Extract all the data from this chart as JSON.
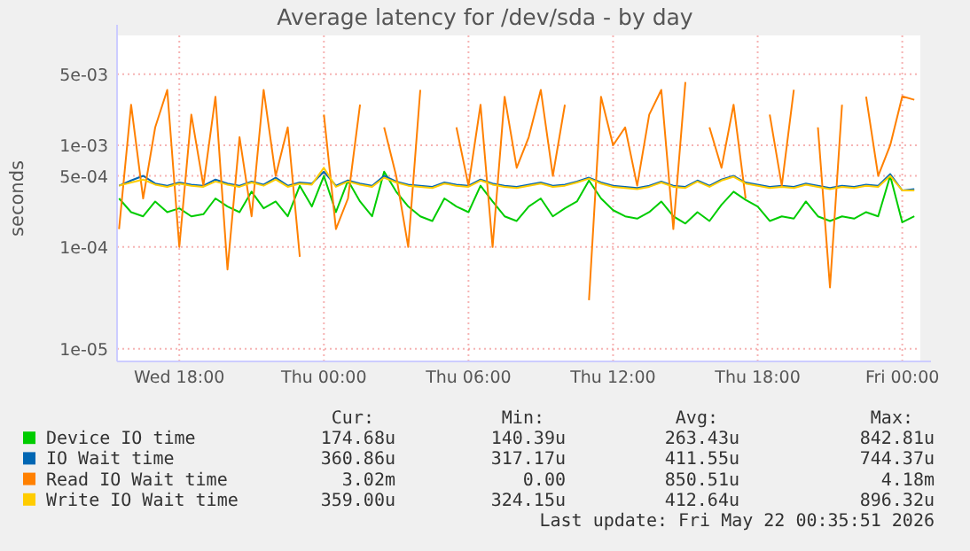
{
  "chart_data": {
    "type": "line",
    "title": "Average latency for /dev/sda - by day",
    "ylabel": "seconds",
    "log": "y",
    "grid": true,
    "legend": "bottom",
    "marker": "none",
    "line_style": "solid",
    "xlim": [
      "2026-05-20T15:25",
      "2026-05-22T00:45"
    ],
    "xticks": [
      {
        "value": "2026-05-20T18:00",
        "label": "Wed 18:00"
      },
      {
        "value": "2026-05-21T00:00",
        "label": "Thu 00:00"
      },
      {
        "value": "2026-05-21T06:00",
        "label": "Thu 06:00"
      },
      {
        "value": "2026-05-21T12:00",
        "label": "Thu 12:00"
      },
      {
        "value": "2026-05-21T18:00",
        "label": "Thu 18:00"
      },
      {
        "value": "2026-05-22T00:00",
        "label": "Fri 00:00"
      }
    ],
    "ylim": [
      7.5e-06,
      0.012
    ],
    "yticks": [
      {
        "value": 1e-05,
        "label": "1e-05"
      },
      {
        "value": 0.0001,
        "label": "1e-04"
      },
      {
        "value": 0.0005,
        "label": "5e-04"
      },
      {
        "value": 0.001,
        "label": "1e-03"
      },
      {
        "value": 0.005,
        "label": "5e-03"
      }
    ],
    "x": [
      "2026-05-20T15:30",
      "2026-05-20T16:00",
      "2026-05-20T16:30",
      "2026-05-20T17:00",
      "2026-05-20T17:30",
      "2026-05-20T18:00",
      "2026-05-20T18:30",
      "2026-05-20T19:00",
      "2026-05-20T19:30",
      "2026-05-20T20:00",
      "2026-05-20T20:30",
      "2026-05-20T21:00",
      "2026-05-20T21:30",
      "2026-05-20T22:00",
      "2026-05-20T22:30",
      "2026-05-20T23:00",
      "2026-05-20T23:30",
      "2026-05-21T00:00",
      "2026-05-21T00:30",
      "2026-05-21T01:00",
      "2026-05-21T01:30",
      "2026-05-21T02:00",
      "2026-05-21T02:30",
      "2026-05-21T03:00",
      "2026-05-21T03:30",
      "2026-05-21T04:00",
      "2026-05-21T04:30",
      "2026-05-21T05:00",
      "2026-05-21T05:30",
      "2026-05-21T06:00",
      "2026-05-21T06:30",
      "2026-05-21T07:00",
      "2026-05-21T07:30",
      "2026-05-21T08:00",
      "2026-05-21T08:30",
      "2026-05-21T09:00",
      "2026-05-21T09:30",
      "2026-05-21T10:00",
      "2026-05-21T10:30",
      "2026-05-21T11:00",
      "2026-05-21T11:30",
      "2026-05-21T12:00",
      "2026-05-21T12:30",
      "2026-05-21T13:00",
      "2026-05-21T13:30",
      "2026-05-21T14:00",
      "2026-05-21T14:30",
      "2026-05-21T15:00",
      "2026-05-21T15:30",
      "2026-05-21T16:00",
      "2026-05-21T16:30",
      "2026-05-21T17:00",
      "2026-05-21T17:30",
      "2026-05-21T18:00",
      "2026-05-21T18:30",
      "2026-05-21T19:00",
      "2026-05-21T19:30",
      "2026-05-21T20:00",
      "2026-05-21T20:30",
      "2026-05-21T21:00",
      "2026-05-21T21:30",
      "2026-05-21T22:00",
      "2026-05-21T22:30",
      "2026-05-21T23:00",
      "2026-05-21T23:30",
      "2026-05-22T00:00",
      "2026-05-22T00:30"
    ],
    "series": [
      {
        "name": "Device IO time",
        "color": "#00cc00",
        "values": [
          0.0003,
          0.00022,
          0.0002,
          0.00028,
          0.00022,
          0.00024,
          0.0002,
          0.00021,
          0.0003,
          0.00025,
          0.00022,
          0.00035,
          0.00024,
          0.00028,
          0.0002,
          0.0004,
          0.00025,
          0.0005,
          0.00022,
          0.00045,
          0.00028,
          0.0002,
          0.00055,
          0.00035,
          0.00025,
          0.0002,
          0.00018,
          0.0003,
          0.00025,
          0.00022,
          0.0004,
          0.00028,
          0.0002,
          0.00018,
          0.00025,
          0.0003,
          0.0002,
          0.00024,
          0.00028,
          0.00045,
          0.0003,
          0.00023,
          0.0002,
          0.00019,
          0.00022,
          0.00028,
          0.0002,
          0.00017,
          0.00022,
          0.00018,
          0.00026,
          0.00035,
          0.00029,
          0.00025,
          0.00018,
          0.0002,
          0.00019,
          0.00028,
          0.0002,
          0.00018,
          0.0002,
          0.00019,
          0.00022,
          0.0002,
          0.0005,
          0.000175,
          0.0002
        ]
      },
      {
        "name": "IO Wait time",
        "color": "#0066b3",
        "values": [
          0.0004,
          0.00045,
          0.0005,
          0.00042,
          0.0004,
          0.00043,
          0.00041,
          0.0004,
          0.00046,
          0.00042,
          0.0004,
          0.00044,
          0.00041,
          0.00048,
          0.0004,
          0.00043,
          0.00042,
          0.00055,
          0.0004,
          0.00045,
          0.00042,
          0.0004,
          0.0005,
          0.00044,
          0.00041,
          0.0004,
          0.00039,
          0.00043,
          0.00041,
          0.0004,
          0.00046,
          0.00042,
          0.0004,
          0.00039,
          0.00041,
          0.00043,
          0.0004,
          0.00041,
          0.00044,
          0.00048,
          0.00043,
          0.0004,
          0.00039,
          0.00038,
          0.0004,
          0.00044,
          0.0004,
          0.00039,
          0.00045,
          0.0004,
          0.00046,
          0.0005,
          0.00043,
          0.00041,
          0.00039,
          0.0004,
          0.00039,
          0.00042,
          0.0004,
          0.00038,
          0.0004,
          0.00039,
          0.00041,
          0.0004,
          0.00052,
          0.00036,
          0.00037
        ]
      },
      {
        "name": "Read IO Wait time",
        "color": "#ff8000",
        "values": [
          0.00015,
          0.0025,
          0.0003,
          0.0015,
          0.0035,
          0.0001,
          0.002,
          0.0004,
          0.003,
          6e-05,
          0.0012,
          0.0002,
          0.0035,
          0.0005,
          0.0015,
          8e-05,
          null,
          0.002,
          0.00015,
          0.0003,
          0.0025,
          null,
          0.0015,
          0.0005,
          0.0001,
          0.0035,
          null,
          null,
          0.0015,
          0.0004,
          0.0025,
          0.0001,
          0.003,
          0.0006,
          0.0012,
          0.0035,
          0.0005,
          0.0025,
          null,
          3e-05,
          0.003,
          0.001,
          0.0015,
          0.0004,
          0.002,
          0.0035,
          0.00015,
          0.00418,
          null,
          0.0015,
          0.0006,
          0.0025,
          0.0003,
          null,
          0.002,
          0.0004,
          0.0035,
          null,
          0.0015,
          4e-05,
          0.0025,
          null,
          0.003,
          0.0005,
          0.001,
          0.00302,
          0.0028
        ]
      },
      {
        "name": "Write IO Wait time",
        "color": "#ffcc00",
        "values": [
          0.0004,
          0.00043,
          0.00046,
          0.00041,
          0.00039,
          0.00042,
          0.0004,
          0.00039,
          0.00044,
          0.00041,
          0.00039,
          0.00043,
          0.0004,
          0.00046,
          0.00039,
          0.00042,
          0.00041,
          0.0006,
          0.00039,
          0.00044,
          0.00041,
          0.00039,
          0.00048,
          0.00043,
          0.0004,
          0.00039,
          0.00038,
          0.00042,
          0.0004,
          0.00039,
          0.00045,
          0.00041,
          0.00039,
          0.00038,
          0.0004,
          0.00042,
          0.00039,
          0.0004,
          0.00043,
          0.00047,
          0.00042,
          0.00039,
          0.00038,
          0.00037,
          0.00039,
          0.00043,
          0.00039,
          0.00038,
          0.00044,
          0.00039,
          0.00045,
          0.00049,
          0.00042,
          0.0004,
          0.00038,
          0.00039,
          0.00038,
          0.00041,
          0.00039,
          0.00037,
          0.00039,
          0.00038,
          0.0004,
          0.00039,
          0.0005,
          0.00036,
          0.000359
        ]
      }
    ],
    "annotations": [
      "Cur:",
      "Min:",
      "Avg:",
      "Max:",
      "174.68u",
      "140.39u",
      "263.43u",
      "842.81u",
      "360.86u",
      "317.17u",
      "411.55u",
      "744.37u",
      "3.02m",
      "0.00",
      "850.51u",
      "4.18m",
      "359.00u",
      "324.15u",
      "412.64u",
      "896.32u",
      "Last update: Fri May 22 00:35:51 2026"
    ]
  }
}
